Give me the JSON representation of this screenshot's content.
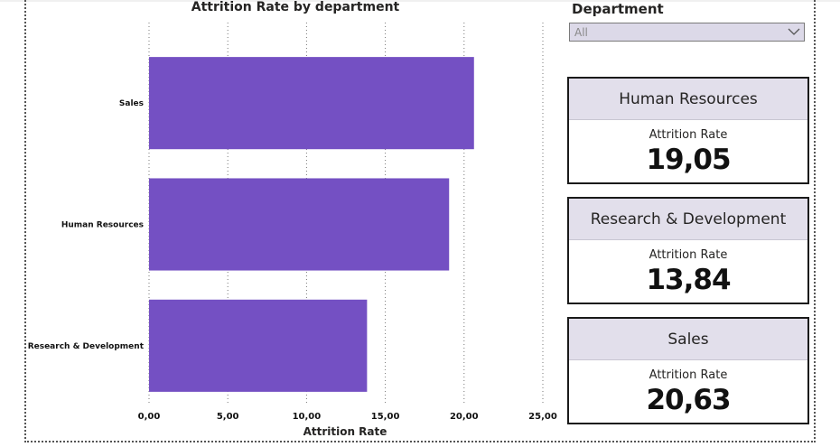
{
  "chart_data": {
    "type": "bar",
    "orientation": "horizontal",
    "title": "Attrition Rate by department",
    "categories": [
      "Sales",
      "Human Resources",
      "Research & Development"
    ],
    "values": [
      20.63,
      19.05,
      13.84
    ],
    "xlabel": "Attrition Rate",
    "ylabel": "",
    "xlim": [
      0,
      25
    ],
    "xticks": [
      0,
      5,
      10,
      15,
      20,
      25
    ],
    "xtick_labels": [
      "0,00",
      "5,00",
      "10,00",
      "15,00",
      "20,00",
      "25,00"
    ],
    "grid": "vertical dotted",
    "bar_color": "#7450c3"
  },
  "slicer": {
    "title": "Department",
    "value": "All"
  },
  "cards": [
    {
      "name": "Human Resources",
      "label": "Attrition Rate",
      "value": "19,05"
    },
    {
      "name": "Research & Development",
      "label": "Attrition Rate",
      "value": "13,84"
    },
    {
      "name": "Sales",
      "label": "Attrition Rate",
      "value": "20,63"
    }
  ]
}
